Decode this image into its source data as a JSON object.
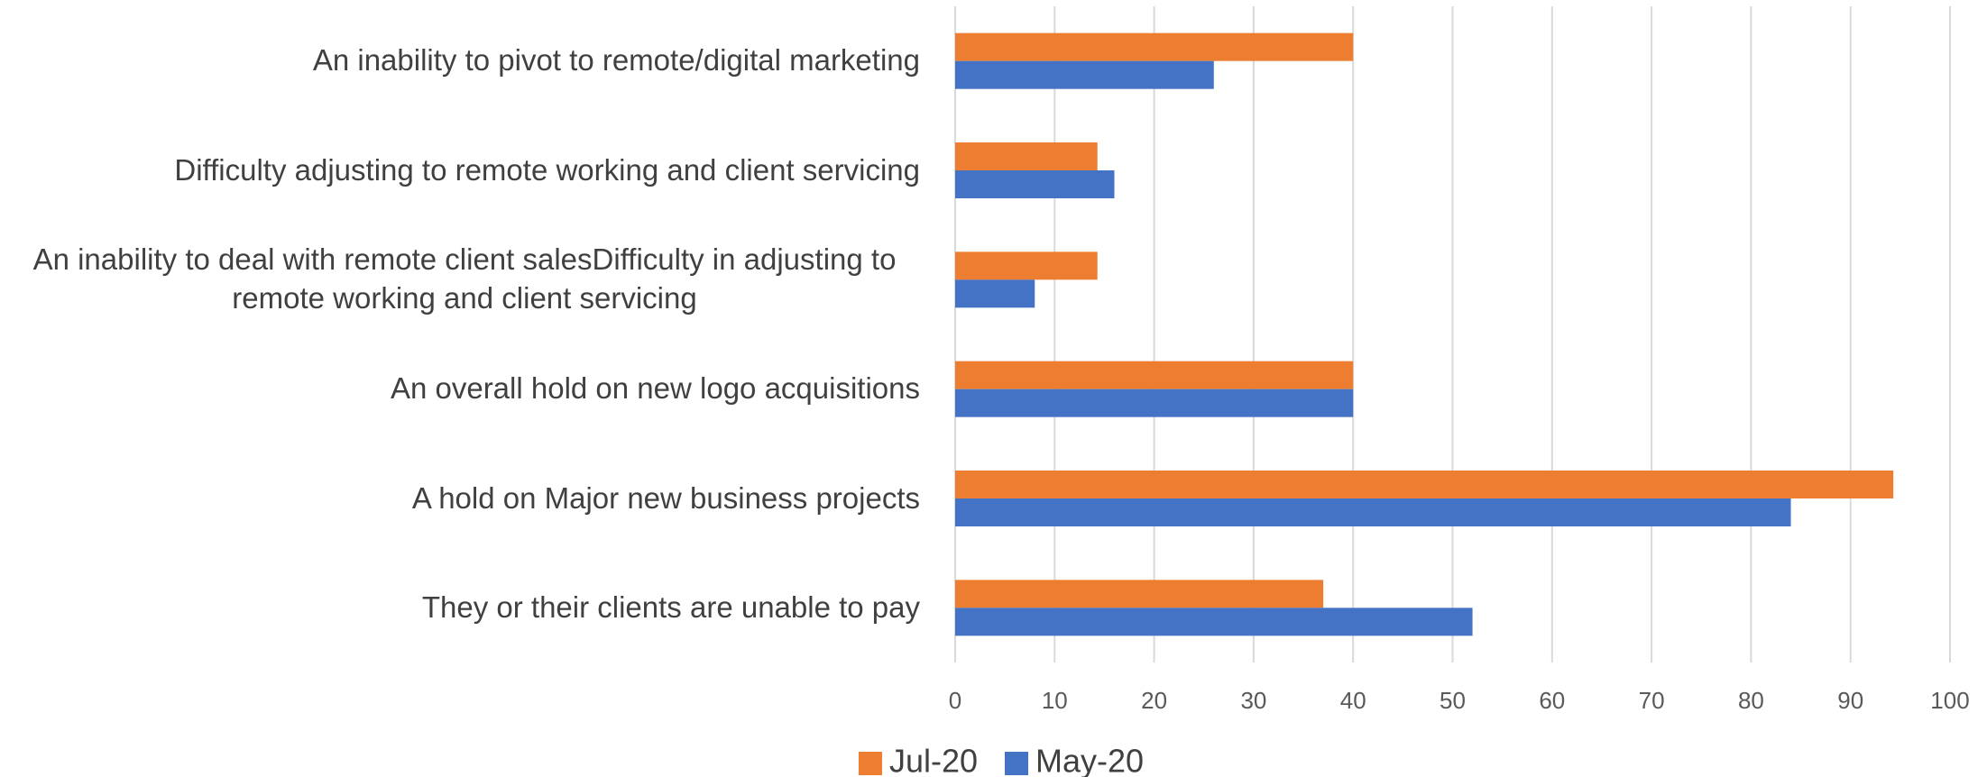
{
  "chart_data": {
    "type": "hbar",
    "categories": [
      "An inability to pivot to remote/digital marketing",
      "Difficulty adjusting to remote working and client servicing",
      "An inability to deal with remote client salesDifficulty in adjusting to remote working and client servicing",
      "An overall hold on new logo acquisitions",
      "A hold on Major new business projects",
      "They or their clients are unable to pay"
    ],
    "series": [
      {
        "name": "Jul-20",
        "color": "#ED7D31",
        "values": [
          40,
          14.3,
          14.3,
          40,
          94.3,
          37
        ]
      },
      {
        "name": "May-20",
        "color": "#4472C4",
        "values": [
          26,
          16,
          8,
          40,
          84,
          52
        ]
      }
    ],
    "xlim": [
      0,
      100
    ],
    "xticks": [
      0,
      10,
      20,
      30,
      40,
      50,
      60,
      70,
      80,
      90,
      100
    ],
    "grid": true,
    "legend": "bottom"
  }
}
